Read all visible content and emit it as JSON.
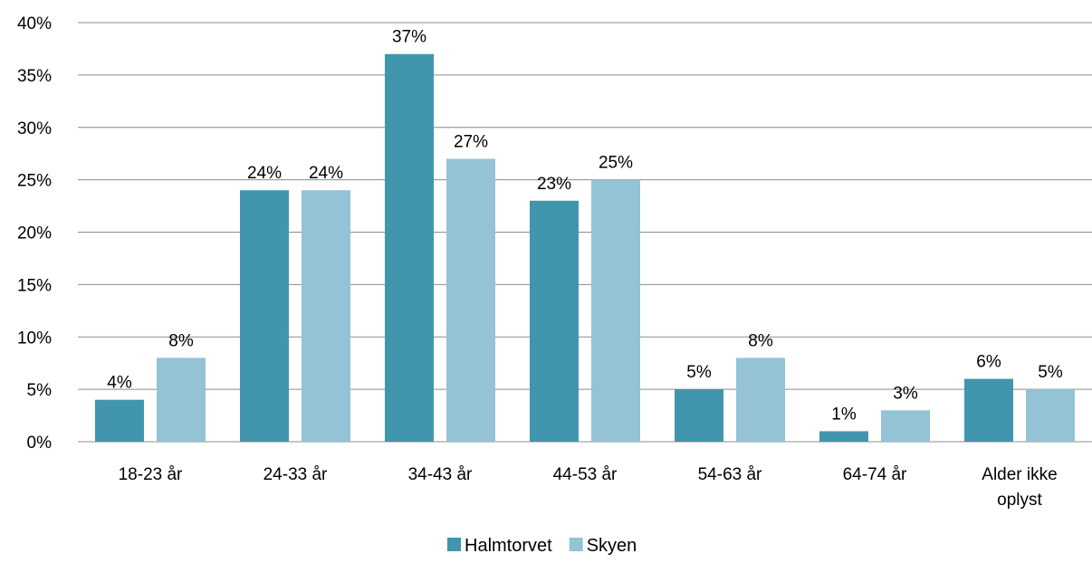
{
  "chart_data": {
    "type": "bar",
    "categories": [
      "18-23 år",
      "24-33 år",
      "34-43 år",
      "44-53 år",
      "54-63 år",
      "64-74 år",
      "Alder ikke oplyst"
    ],
    "series": [
      {
        "name": "Halmtorvet",
        "color": "#4196AD",
        "values": [
          4,
          24,
          37,
          23,
          5,
          1,
          6
        ]
      },
      {
        "name": "Skyen",
        "color": "#93C3D5",
        "values": [
          8,
          24,
          27,
          25,
          8,
          3,
          5
        ]
      }
    ],
    "y_ticks": [
      "0%",
      "5%",
      "10%",
      "15%",
      "20%",
      "25%",
      "30%",
      "35%",
      "40%"
    ],
    "data_labels": [
      [
        "4%",
        "24%",
        "37%",
        "23%",
        "5%",
        "1%",
        "6%"
      ],
      [
        "8%",
        "24%",
        "27%",
        "25%",
        "8%",
        "3%",
        "5%"
      ]
    ],
    "ylim": [
      0,
      40
    ],
    "grid": true,
    "legend_position": "bottom"
  }
}
